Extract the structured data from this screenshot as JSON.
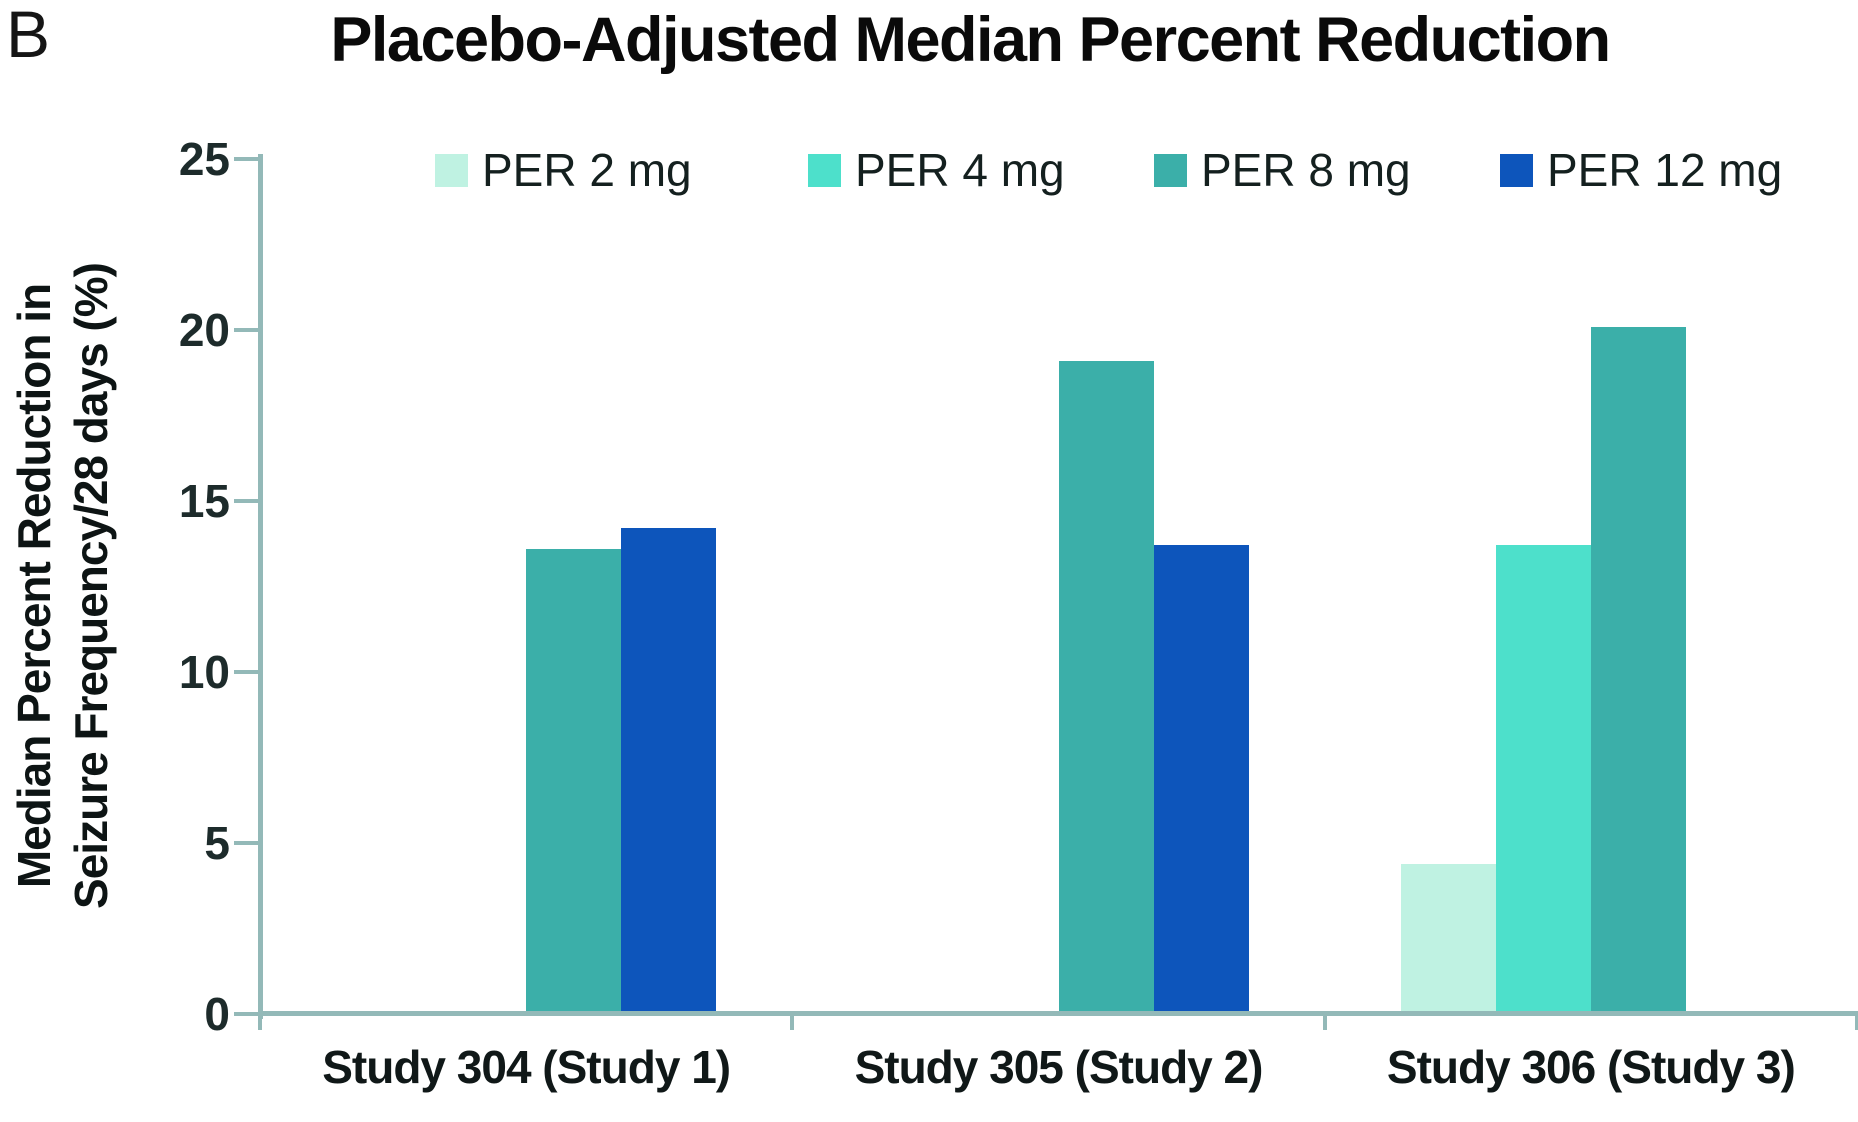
{
  "panel_label": "B",
  "title": "Placebo-Adjusted Median Percent Reduction",
  "chart_data": {
    "type": "bar",
    "title": "Placebo-Adjusted Median Percent Reduction",
    "xlabel": "",
    "ylabel": "Median Percent Reduction in Seizure Frequency/28 days (%)",
    "ylabel_lines": [
      "Median Percent Reduction in",
      "Seizure Frequency/28 days (%)"
    ],
    "ylim": [
      0,
      25
    ],
    "yticks": [
      0,
      5,
      10,
      15,
      20,
      25
    ],
    "grid": false,
    "legend_position": "top",
    "categories": [
      "Study 304 (Study 1)",
      "Study 305 (Study 2)",
      "Study 306 (Study 3)"
    ],
    "series": [
      {
        "name": "PER 2 mg",
        "color": "#bff2e2",
        "values": [
          null,
          null,
          4.4
        ]
      },
      {
        "name": "PER 4 mg",
        "color": "#4de0cb",
        "values": [
          null,
          null,
          13.7
        ]
      },
      {
        "name": "PER 8 mg",
        "color": "#3bafa9",
        "values": [
          13.6,
          19.1,
          20.1
        ]
      },
      {
        "name": "PER 12 mg",
        "color": "#0d55bb",
        "values": [
          14.2,
          13.7,
          null
        ]
      }
    ],
    "axis_color": "#93b9b8",
    "tick_label_color": "#1d2b2b",
    "category_label_color": "#101818",
    "title_color": "#0a0a0a"
  }
}
